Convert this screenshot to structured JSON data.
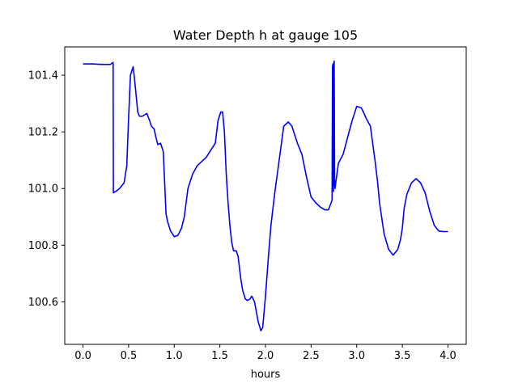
{
  "chart_data": {
    "type": "line",
    "title": "Water Depth h at gauge 105",
    "xlabel": "hours",
    "ylabel": "",
    "xlim": [
      -0.2,
      4.2
    ],
    "ylim": [
      100.45,
      101.5
    ],
    "xticks": [
      0.0,
      0.5,
      1.0,
      1.5,
      2.0,
      2.5,
      3.0,
      3.5,
      4.0
    ],
    "xtick_labels": [
      "0.0",
      "0.5",
      "1.0",
      "1.5",
      "2.0",
      "2.5",
      "3.0",
      "3.5",
      "4.0"
    ],
    "yticks": [
      100.6,
      100.8,
      101.0,
      101.2,
      101.4
    ],
    "ytick_labels": [
      "100.6",
      "100.8",
      "101.0",
      "101.2",
      "101.4"
    ],
    "grid": false,
    "legend": "none",
    "series": [
      {
        "color": "#0000ff",
        "x": [
          0.0,
          0.1,
          0.2,
          0.3,
          0.33,
          0.333,
          0.36,
          0.4,
          0.45,
          0.48,
          0.5,
          0.52,
          0.55,
          0.57,
          0.6,
          0.62,
          0.65,
          0.7,
          0.73,
          0.75,
          0.78,
          0.8,
          0.82,
          0.85,
          0.88,
          0.91,
          0.93,
          0.96,
          1.0,
          1.04,
          1.08,
          1.11,
          1.15,
          1.2,
          1.25,
          1.3,
          1.35,
          1.4,
          1.45,
          1.48,
          1.51,
          1.53,
          1.55,
          1.57,
          1.59,
          1.61,
          1.63,
          1.65,
          1.68,
          1.7,
          1.73,
          1.75,
          1.78,
          1.8,
          1.83,
          1.85,
          1.88,
          1.92,
          1.95,
          1.97,
          2.0,
          2.03,
          2.06,
          2.1,
          2.15,
          2.2,
          2.25,
          2.29,
          2.32,
          2.35,
          2.4,
          2.45,
          2.5,
          2.55,
          2.6,
          2.65,
          2.69,
          2.72,
          2.73,
          2.735,
          2.74,
          2.745,
          2.75,
          2.753,
          2.758,
          2.762,
          2.77,
          2.8,
          2.85,
          2.9,
          2.95,
          3.0,
          3.05,
          3.08,
          3.1,
          3.15,
          3.2,
          3.23,
          3.25,
          3.3,
          3.35,
          3.4,
          3.45,
          3.48,
          3.5,
          3.52,
          3.55,
          3.6,
          3.65,
          3.7,
          3.75,
          3.8,
          3.85,
          3.9,
          3.95,
          4.0
        ],
        "y": [
          101.44,
          101.44,
          101.438,
          101.438,
          101.445,
          100.985,
          100.99,
          101.0,
          101.02,
          101.08,
          101.25,
          101.4,
          101.43,
          101.37,
          101.27,
          101.255,
          101.255,
          101.265,
          101.24,
          101.22,
          101.21,
          101.18,
          101.155,
          101.16,
          101.13,
          100.91,
          100.88,
          100.85,
          100.83,
          100.835,
          100.86,
          100.9,
          101.0,
          101.05,
          101.08,
          101.095,
          101.11,
          101.135,
          101.16,
          101.24,
          101.27,
          101.27,
          101.2,
          101.05,
          100.95,
          100.87,
          100.81,
          100.78,
          100.78,
          100.76,
          100.68,
          100.64,
          100.61,
          100.605,
          100.61,
          100.62,
          100.6,
          100.53,
          100.498,
          100.51,
          100.62,
          100.75,
          100.87,
          100.98,
          101.1,
          101.22,
          101.235,
          101.22,
          101.19,
          101.16,
          101.12,
          101.04,
          100.97,
          100.95,
          100.935,
          100.925,
          100.925,
          100.95,
          100.96,
          101.43,
          101.44,
          100.99,
          101.445,
          101.45,
          101.02,
          101.0,
          101.02,
          101.09,
          101.12,
          101.18,
          101.24,
          101.29,
          101.285,
          101.265,
          101.25,
          101.22,
          101.1,
          101.02,
          100.95,
          100.84,
          100.785,
          100.765,
          100.785,
          100.82,
          100.86,
          100.93,
          100.98,
          101.02,
          101.035,
          101.02,
          100.985,
          100.92,
          100.87,
          100.85,
          100.848,
          100.848
        ]
      }
    ]
  }
}
